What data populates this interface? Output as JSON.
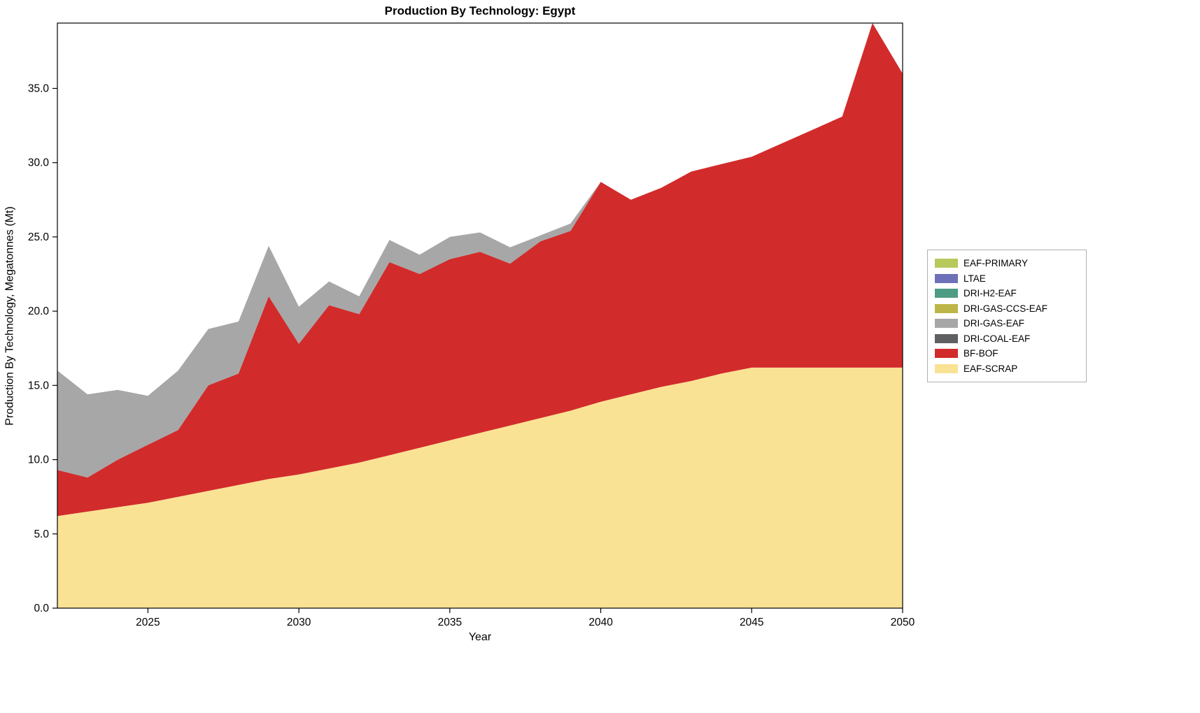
{
  "chart_data": {
    "type": "area",
    "title": "Production By Technology: Egypt",
    "xlabel": "Year",
    "ylabel": "Production By Technology, Megatonnes (Mt)",
    "x": [
      2022,
      2023,
      2024,
      2025,
      2026,
      2027,
      2028,
      2029,
      2030,
      2031,
      2032,
      2033,
      2034,
      2035,
      2036,
      2037,
      2038,
      2039,
      2040,
      2041,
      2042,
      2043,
      2044,
      2045,
      2046,
      2047,
      2048,
      2049,
      2050
    ],
    "xticks": [
      2025,
      2030,
      2035,
      2040,
      2045,
      2050
    ],
    "ytick_labels": [
      "0.0",
      "5.0",
      "10.0",
      "15.0",
      "20.0",
      "25.0",
      "30.0",
      "35.0"
    ],
    "xlim": [
      2022,
      2050
    ],
    "ylim": [
      0,
      39.4
    ],
    "grid": false,
    "legend_position": "right-outside",
    "stacking": "stacked-area, last series listed is bottom of stack; legend shows series top-to-bottom",
    "series": [
      {
        "name": "EAF-PRIMARY",
        "color": "#b8c95c",
        "values": [
          0,
          0,
          0,
          0,
          0,
          0,
          0,
          0,
          0,
          0,
          0,
          0,
          0,
          0,
          0,
          0,
          0,
          0,
          0,
          0,
          0,
          0,
          0,
          0,
          0,
          0,
          0,
          0,
          0
        ]
      },
      {
        "name": "LTAE",
        "color": "#6e70b8",
        "values": [
          0,
          0,
          0,
          0,
          0,
          0,
          0,
          0,
          0,
          0,
          0,
          0,
          0,
          0,
          0,
          0,
          0,
          0,
          0,
          0,
          0,
          0,
          0,
          0,
          0,
          0,
          0,
          0,
          0
        ]
      },
      {
        "name": "DRI-H2-EAF",
        "color": "#4e9c85",
        "values": [
          0,
          0,
          0,
          0,
          0,
          0,
          0,
          0,
          0,
          0,
          0,
          0,
          0,
          0,
          0,
          0,
          0,
          0,
          0,
          0,
          0,
          0,
          0,
          0,
          0,
          0,
          0,
          0,
          0
        ]
      },
      {
        "name": "DRI-GAS-CCS-EAF",
        "color": "#bdb548",
        "values": [
          0,
          0,
          0,
          0,
          0,
          0,
          0,
          0,
          0,
          0,
          0,
          0,
          0,
          0,
          0,
          0,
          0,
          0,
          0,
          0,
          0,
          0,
          0,
          0,
          0,
          0,
          0,
          0,
          0
        ]
      },
      {
        "name": "DRI-GAS-EAF",
        "color": "#a7a7a7",
        "values": [
          6.7,
          5.6,
          4.7,
          3.3,
          4.0,
          3.8,
          3.5,
          3.4,
          2.5,
          1.6,
          1.2,
          1.5,
          1.3,
          1.5,
          1.3,
          1.1,
          0.4,
          0.5,
          0,
          0,
          0,
          0,
          0,
          0,
          0,
          0,
          0,
          0,
          0
        ]
      },
      {
        "name": "DRI-COAL-EAF",
        "color": "#5f6062",
        "values": [
          0,
          0,
          0,
          0,
          0,
          0,
          0,
          0,
          0,
          0,
          0,
          0,
          0,
          0,
          0,
          0,
          0,
          0,
          0,
          0,
          0,
          0,
          0,
          0,
          0,
          0,
          0,
          0,
          0
        ]
      },
      {
        "name": "BF-BOF",
        "color": "#d22b2b",
        "values": [
          3.1,
          2.3,
          3.2,
          3.9,
          4.5,
          7.1,
          7.5,
          12.3,
          8.8,
          11.0,
          10.0,
          13.0,
          11.7,
          12.2,
          12.2,
          10.9,
          11.9,
          12.1,
          14.8,
          13.1,
          13.4,
          14.1,
          14.1,
          14.2,
          15.1,
          16.0,
          16.9,
          23.2,
          19.8
        ]
      },
      {
        "name": "EAF-SCRAP",
        "color": "#fae294",
        "values": [
          6.2,
          6.5,
          6.8,
          7.1,
          7.5,
          7.9,
          8.3,
          8.7,
          9.0,
          9.4,
          9.8,
          10.3,
          10.8,
          11.3,
          11.8,
          12.3,
          12.8,
          13.3,
          13.9,
          14.4,
          14.9,
          15.3,
          15.8,
          16.2,
          16.2,
          16.2,
          16.2,
          16.2,
          16.2
        ]
      }
    ]
  }
}
